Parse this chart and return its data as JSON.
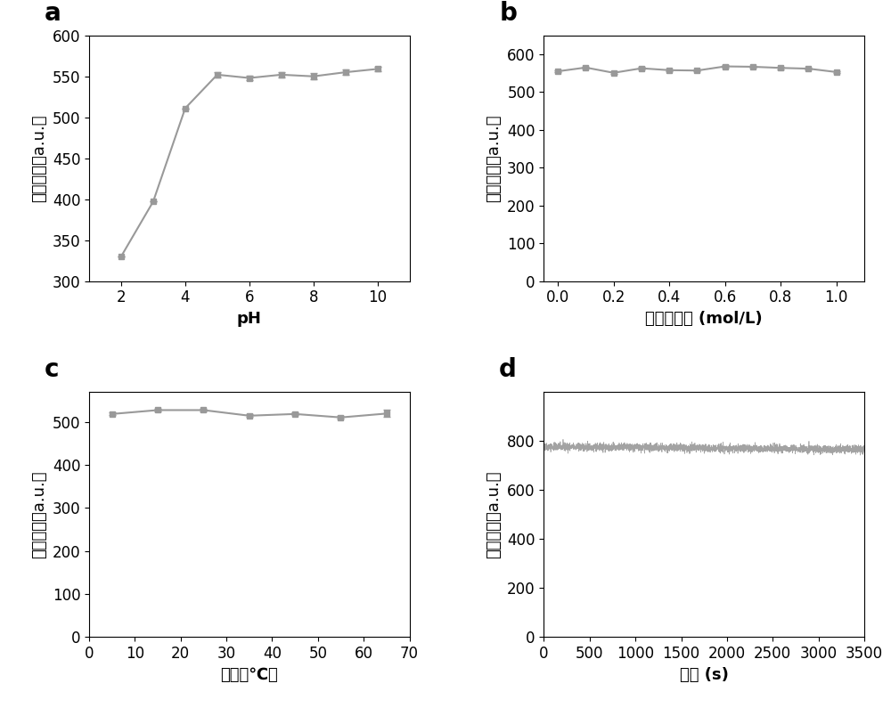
{
  "panel_a": {
    "x": [
      2,
      3,
      4,
      5,
      6,
      7,
      8,
      9,
      10
    ],
    "y": [
      330,
      397,
      511,
      552,
      548,
      552,
      550,
      555,
      559
    ],
    "yerr": [
      0,
      0,
      0,
      3,
      3,
      3,
      4,
      3,
      3
    ],
    "xlabel": "pH",
    "ylabel": "荧光强度（a.u.）",
    "ylim": [
      300,
      600
    ],
    "yticks": [
      300,
      350,
      400,
      450,
      500,
      550,
      600
    ],
    "xlim": [
      1,
      11
    ],
    "xticks": [
      2,
      4,
      6,
      8,
      10
    ],
    "label": "a"
  },
  "panel_b": {
    "x": [
      0.0,
      0.1,
      0.2,
      0.3,
      0.4,
      0.5,
      0.6,
      0.7,
      0.8,
      0.9,
      1.0
    ],
    "y": [
      555,
      565,
      551,
      563,
      558,
      557,
      568,
      567,
      564,
      562,
      553
    ],
    "yerr": [
      3,
      3,
      3,
      3,
      3,
      3,
      3,
      3,
      3,
      3,
      3
    ],
    "xlabel": "钓离子浓度 (mol/L)",
    "ylabel": "荧光强度（a.u.）",
    "ylim": [
      0,
      650
    ],
    "yticks": [
      0,
      100,
      200,
      300,
      400,
      500,
      600
    ],
    "xlim": [
      -0.05,
      1.1
    ],
    "xticks": [
      0.0,
      0.2,
      0.4,
      0.6,
      0.8,
      1.0
    ],
    "label": "b"
  },
  "panel_c": {
    "x": [
      5,
      15,
      25,
      35,
      45,
      55,
      65
    ],
    "y": [
      518,
      527,
      527,
      514,
      518,
      510,
      519
    ],
    "yerr": [
      3,
      3,
      3,
      3,
      3,
      3,
      8
    ],
    "xlabel": "温度（℃）",
    "ylabel": "荧光强度（a.u.）",
    "ylim": [
      0,
      570
    ],
    "yticks": [
      0,
      100,
      200,
      300,
      400,
      500
    ],
    "xlim": [
      0,
      70
    ],
    "xticks": [
      0,
      10,
      20,
      30,
      40,
      50,
      60,
      70
    ],
    "label": "c"
  },
  "panel_d": {
    "x_start": 0,
    "x_end": 3500,
    "n_points": 3500,
    "y_mean": 775,
    "y_noise": 8,
    "y_trend": 0.003,
    "xlabel": "时间 (s)",
    "ylabel": "荧光强度（a.u.）",
    "ylim": [
      0,
      1000
    ],
    "yticks": [
      0,
      200,
      400,
      600,
      800
    ],
    "xlim": [
      0,
      3500
    ],
    "xticks": [
      0,
      500,
      1000,
      1500,
      2000,
      2500,
      3000,
      3500
    ],
    "label": "d"
  },
  "line_color": "#999999",
  "marker": "s",
  "markersize": 5,
  "linewidth": 1.5,
  "capsize": 3,
  "elinewidth": 1,
  "tick_fontsize": 12,
  "axis_label_fontsize": 13,
  "panel_label_fontsize": 20,
  "background_color": "#ffffff"
}
